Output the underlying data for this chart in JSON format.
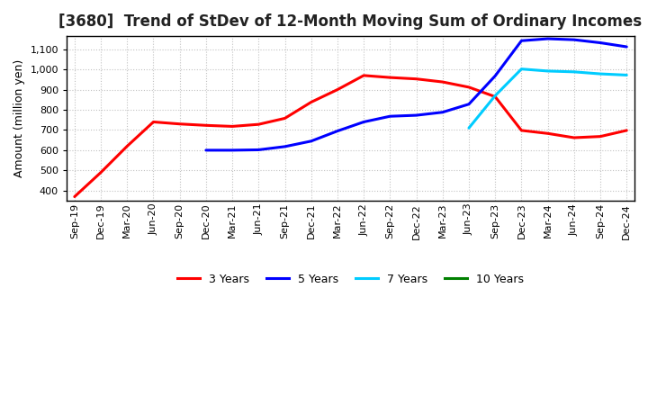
{
  "title": "[3680]  Trend of StDev of 12-Month Moving Sum of Ordinary Incomes",
  "ylabel": "Amount (million yen)",
  "ylim": [
    350,
    1165
  ],
  "yticks": [
    400,
    500,
    600,
    700,
    800,
    900,
    1000,
    1100
  ],
  "background_color": "#ffffff",
  "plot_bg_color": "#ffffff",
  "grid_color": "#bbbbbb",
  "series": {
    "3 Years": {
      "color": "#ff0000",
      "data": {
        "Sep-19": 370,
        "Dec-19": 490,
        "Mar-20": 620,
        "Jun-20": 740,
        "Sep-20": 730,
        "Dec-20": 723,
        "Mar-21": 718,
        "Jun-21": 728,
        "Sep-21": 758,
        "Dec-21": 838,
        "Mar-22": 900,
        "Jun-22": 970,
        "Sep-22": 960,
        "Dec-22": 953,
        "Mar-23": 938,
        "Jun-23": 912,
        "Sep-23": 865,
        "Dec-23": 698,
        "Mar-24": 683,
        "Jun-24": 662,
        "Sep-24": 668,
        "Dec-24": 698
      }
    },
    "5 Years": {
      "color": "#0000ff",
      "data": {
        "Dec-20": 600,
        "Mar-21": 600,
        "Jun-21": 602,
        "Sep-21": 618,
        "Dec-21": 645,
        "Mar-22": 695,
        "Jun-22": 740,
        "Sep-22": 768,
        "Dec-22": 773,
        "Mar-23": 788,
        "Jun-23": 828,
        "Sep-23": 968,
        "Dec-23": 1142,
        "Mar-24": 1152,
        "Jun-24": 1147,
        "Sep-24": 1132,
        "Dec-24": 1112
      }
    },
    "7 Years": {
      "color": "#00ccff",
      "data": {
        "Jun-23": 710,
        "Sep-23": 870,
        "Dec-23": 1002,
        "Mar-24": 992,
        "Jun-24": 988,
        "Sep-24": 978,
        "Dec-24": 972
      }
    },
    "10 Years": {
      "color": "#008000",
      "data": {}
    }
  },
  "x_labels": [
    "Sep-19",
    "Dec-19",
    "Mar-20",
    "Jun-20",
    "Sep-20",
    "Dec-20",
    "Mar-21",
    "Jun-21",
    "Sep-21",
    "Dec-21",
    "Mar-22",
    "Jun-22",
    "Sep-22",
    "Dec-22",
    "Mar-23",
    "Jun-23",
    "Sep-23",
    "Dec-23",
    "Mar-24",
    "Jun-24",
    "Sep-24",
    "Dec-24"
  ],
  "legend_order": [
    "3 Years",
    "5 Years",
    "7 Years",
    "10 Years"
  ],
  "legend_colors": [
    "#ff0000",
    "#0000ff",
    "#00ccff",
    "#008000"
  ],
  "title_fontsize": 12,
  "ylabel_fontsize": 9,
  "tick_fontsize": 8
}
